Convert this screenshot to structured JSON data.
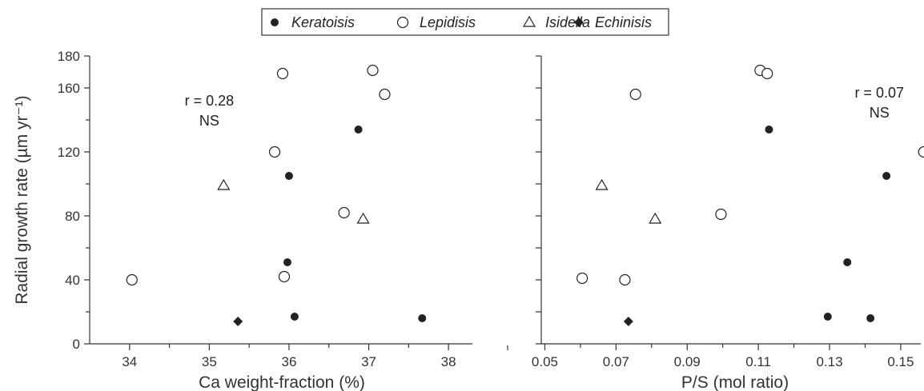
{
  "legend": {
    "entries": [
      {
        "name": "Keratoisis",
        "marker": "filled-circle"
      },
      {
        "name": "Lepidisis",
        "marker": "open-circle"
      },
      {
        "name": "Isidella",
        "marker": "open-triangle"
      },
      {
        "name": "Echinisis",
        "marker": "filled-diamond"
      }
    ]
  },
  "y_axis_title": "Radial growth rate (µm yr⁻¹)",
  "colors": {
    "ink": "#222222",
    "axis": "#333333"
  },
  "chart_data": [
    {
      "type": "scatter",
      "xlabel": "Ca weight-fraction (%)",
      "ylabel": "Radial growth rate (µm yr⁻¹)",
      "xlim": [
        33.5,
        38.3
      ],
      "ylim": [
        0,
        180
      ],
      "x_ticks": [
        34,
        35,
        36,
        37,
        38
      ],
      "x_tick_labels": [
        "34",
        "35",
        "36",
        "37",
        "38"
      ],
      "x_minor_ticks": [
        34.5,
        35.5,
        36.5,
        37.5
      ],
      "y_ticks": [
        0,
        40,
        80,
        120,
        160,
        180
      ],
      "y_tick_labels": [
        "0",
        "40",
        "80",
        "120",
        "160",
        "180"
      ],
      "y_minor_ticks": [
        20,
        60,
        100,
        140
      ],
      "annotation": {
        "lines": [
          "r = 0.28",
          "NS"
        ],
        "x": 35.0,
        "y": 149
      },
      "series": [
        {
          "name": "Keratoisis",
          "marker": "filled-circle",
          "points": [
            [
              36.87,
              134
            ],
            [
              36.0,
              105
            ],
            [
              35.98,
              51
            ],
            [
              36.07,
              17
            ],
            [
              37.67,
              16
            ]
          ]
        },
        {
          "name": "Lepidisis",
          "marker": "open-circle",
          "points": [
            [
              34.03,
              40
            ],
            [
              35.92,
              169
            ],
            [
              35.82,
              120
            ],
            [
              35.94,
              42
            ],
            [
              36.69,
              82
            ],
            [
              37.05,
              171
            ],
            [
              37.2,
              156
            ]
          ]
        },
        {
          "name": "Isidella",
          "marker": "open-triangle",
          "points": [
            [
              35.18,
              99
            ],
            [
              36.93,
              78
            ]
          ]
        },
        {
          "name": "Echinisis",
          "marker": "filled-diamond",
          "points": [
            [
              35.36,
              14
            ]
          ]
        }
      ]
    },
    {
      "type": "scatter",
      "xlabel": "P/S (mol ratio)",
      "ylabel": "",
      "xlim": [
        0.049,
        0.157
      ],
      "ylim": [
        0,
        180
      ],
      "x_ticks": [
        0.05,
        0.07,
        0.09,
        0.11,
        0.13,
        0.15
      ],
      "x_tick_labels": [
        "0.05",
        "0.07",
        "0.09",
        "0.11",
        "0.13",
        "0.15"
      ],
      "x_minor_ticks": [
        0.06,
        0.08,
        0.1,
        0.12,
        0.14
      ],
      "y_ticks": [
        0,
        20,
        40,
        60,
        80,
        100,
        120,
        140,
        160,
        180
      ],
      "y_tick_labels": [],
      "y_minor_ticks": [],
      "annotation": {
        "lines": [
          "r = 0.07",
          "NS"
        ],
        "x": 0.144,
        "y": 154
      },
      "series": [
        {
          "name": "Keratoisis",
          "marker": "filled-circle",
          "points": [
            [
              0.113,
              134
            ],
            [
              0.146,
              105
            ],
            [
              0.135,
              51
            ],
            [
              0.1295,
              17
            ],
            [
              0.1415,
              16
            ]
          ]
        },
        {
          "name": "Lepidisis",
          "marker": "open-circle",
          "points": [
            [
              0.0605,
              41
            ],
            [
              0.0725,
              40
            ],
            [
              0.0755,
              156
            ],
            [
              0.0995,
              81
            ],
            [
              0.1105,
              171
            ],
            [
              0.1125,
              169
            ],
            [
              0.1565,
              120
            ]
          ]
        },
        {
          "name": "Isidella",
          "marker": "open-triangle",
          "points": [
            [
              0.066,
              99
            ],
            [
              0.081,
              78
            ]
          ]
        },
        {
          "name": "Echinisis",
          "marker": "filled-diamond",
          "points": [
            [
              0.0735,
              14
            ]
          ]
        }
      ]
    }
  ]
}
